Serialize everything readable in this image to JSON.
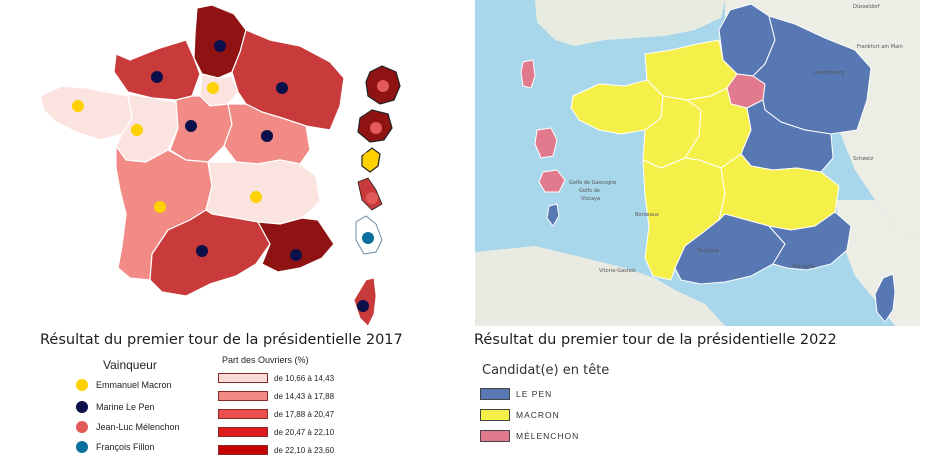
{
  "left_map": {
    "title": "Résultat du premier tour de la présidentielle 2017",
    "winner_legend": {
      "heading": "Vainqueur",
      "items": [
        {
          "label": "Emmanuel Macron",
          "color": "#ffd100"
        },
        {
          "label": "Marine Le Pen",
          "color": "#0b0f4a"
        },
        {
          "label": "Jean-Luc Mélenchon",
          "color": "#e35a5a"
        },
        {
          "label": "François Fillon",
          "color": "#0a6f9e"
        }
      ]
    },
    "share_legend": {
      "heading": "Part des Ouvriers (%)",
      "items": [
        {
          "label": "de 10,66 à 14,43",
          "color": "#f9dad7"
        },
        {
          "label": "de 14,43 à 17,88",
          "color": "#f28b86"
        },
        {
          "label": "de 17,88 à 20,47",
          "color": "#ec4d4d"
        },
        {
          "label": "de 20,47 à 22,10",
          "color": "#de1b1b"
        },
        {
          "label": "de 22,10 à 23,60",
          "color": "#c40000"
        }
      ]
    }
  },
  "right_map": {
    "title": "Résultat du premier tour de la présidentielle 2022",
    "legend": {
      "heading": "Candidat(e) en tête",
      "items": [
        {
          "label": "LE PEN",
          "color": "#5878b4"
        },
        {
          "label": "MACRON",
          "color": "#f5ef4a"
        },
        {
          "label": "MÉLENCHON",
          "color": "#e07a8c"
        }
      ]
    },
    "basemap_labels": {
      "dusseldorf": "Düsseldorf",
      "frankfurt": "Frankfurt am Main",
      "luxembourg": "Luxembourg",
      "schweiz": "Schweiz",
      "golfe": "Golfe de Gascogne",
      "golfo": "Golfo de",
      "vizcaya": "Vizcaya",
      "bordeaux": "Bordeaux",
      "toulouse": "Toulouse",
      "marseille": "Marseille",
      "vitoria": "Vitoria-Gasteiz"
    }
  }
}
